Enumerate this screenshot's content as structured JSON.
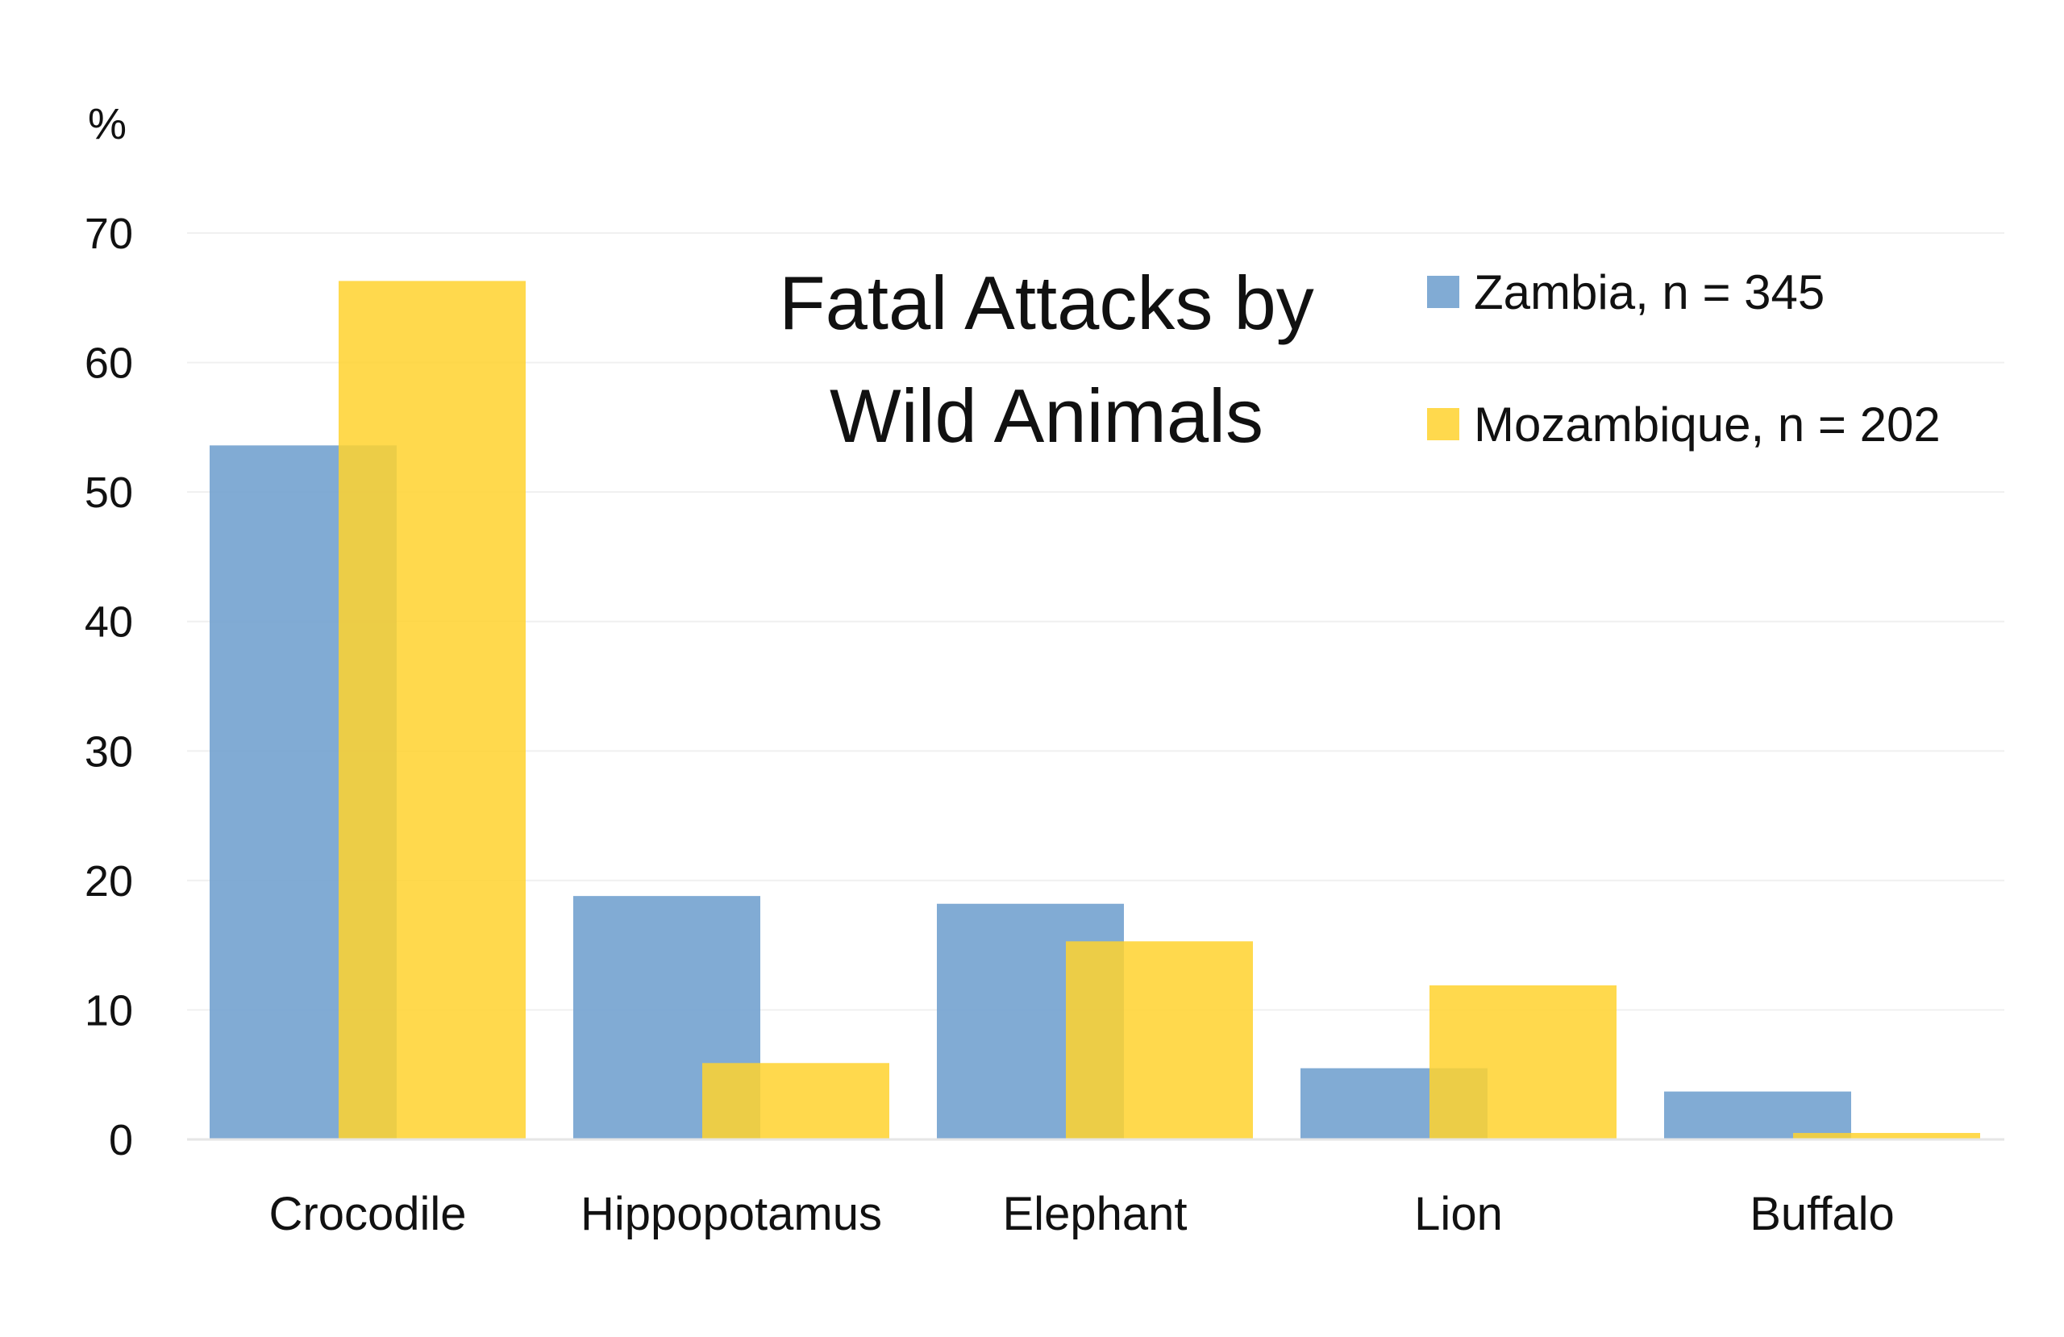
{
  "chart_data": {
    "type": "bar",
    "title": [
      "Fatal Attacks by",
      "Wild Animals"
    ],
    "ylabel": "%",
    "xlabel": "",
    "ylim": [
      0,
      70
    ],
    "yticks": [
      0,
      10,
      20,
      30,
      40,
      50,
      60,
      70
    ],
    "grid": true,
    "legend_position": "top-right",
    "categories": [
      "Crocodile",
      "Hippopotamus",
      "Elephant",
      "Lion",
      "Buffalo"
    ],
    "series": [
      {
        "name": "Zambia, n = 345",
        "color": "#6F9FCE",
        "opacity": 0.88,
        "values": [
          53.6,
          18.8,
          18.2,
          5.5,
          3.7
        ]
      },
      {
        "name": "Mozambique, n = 202",
        "color": "#FFD22E",
        "opacity": 0.85,
        "values": [
          66.3,
          5.9,
          15.3,
          11.9,
          0.5
        ]
      }
    ]
  }
}
